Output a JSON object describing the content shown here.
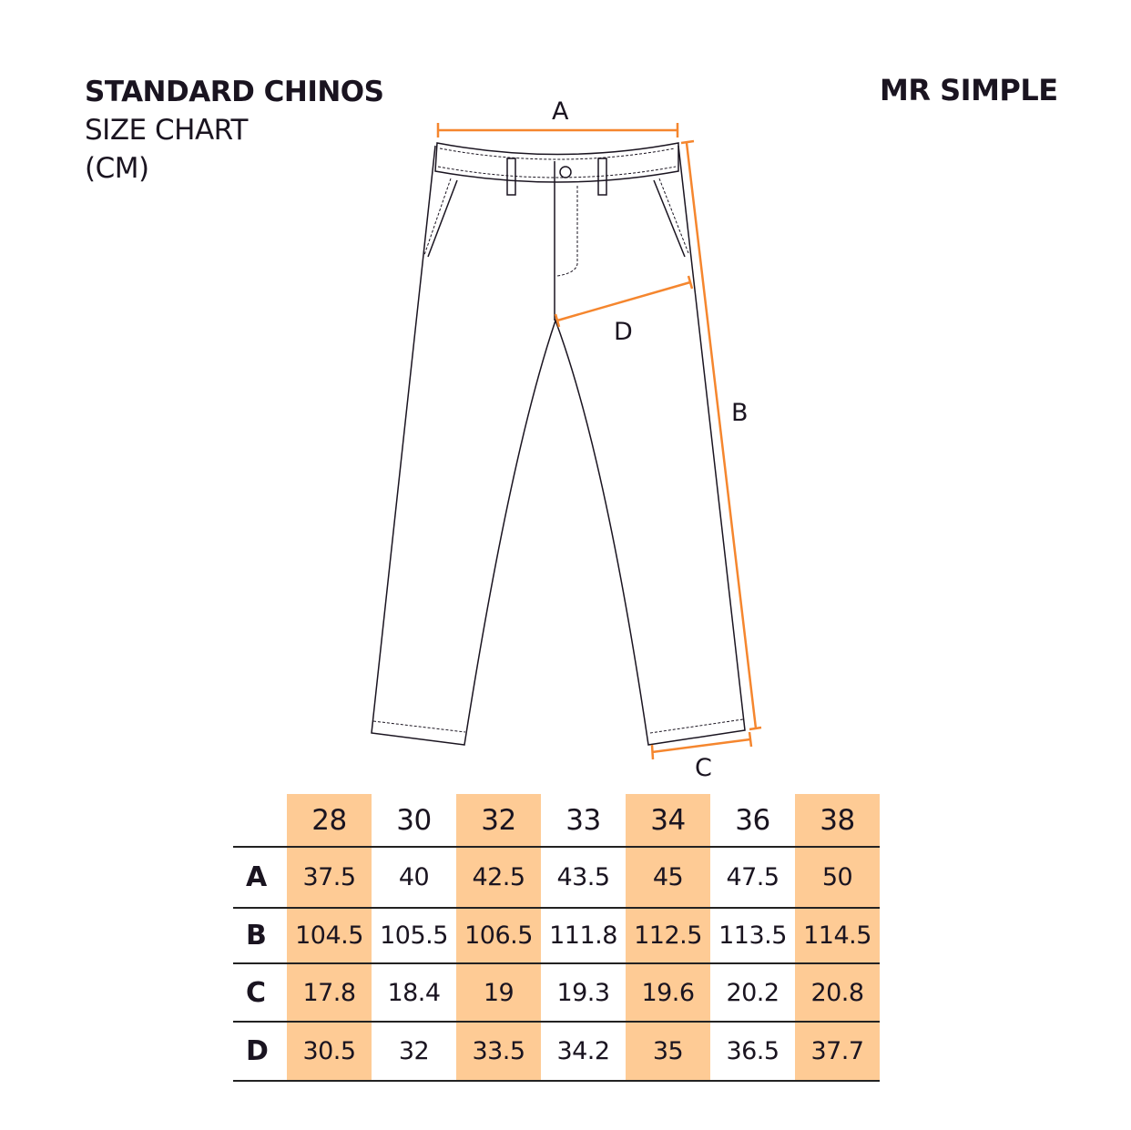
{
  "header": {
    "title": "STANDARD CHINOS",
    "subtitle": "SIZE CHART",
    "unit": "(CM)",
    "brand": "MR SIMPLE"
  },
  "diagram": {
    "labels": {
      "a": "A",
      "b": "B",
      "c": "C",
      "d": "D"
    },
    "measure_color": "#f5862e",
    "outline_color": "#1a1420"
  },
  "table": {
    "highlight_color": "#fecb95",
    "sizes": [
      "28",
      "30",
      "32",
      "33",
      "34",
      "36",
      "38"
    ],
    "rows": [
      {
        "label": "A",
        "values": [
          "37.5",
          "40",
          "42.5",
          "43.5",
          "45",
          "47.5",
          "50"
        ]
      },
      {
        "label": "B",
        "values": [
          "104.5",
          "105.5",
          "106.5",
          "111.8",
          "112.5",
          "113.5",
          "114.5"
        ]
      },
      {
        "label": "C",
        "values": [
          "17.8",
          "18.4",
          "19",
          "19.3",
          "19.6",
          "20.2",
          "20.8"
        ]
      },
      {
        "label": "D",
        "values": [
          "30.5",
          "32",
          "33.5",
          "34.2",
          "35",
          "36.5",
          "37.7"
        ]
      }
    ]
  }
}
